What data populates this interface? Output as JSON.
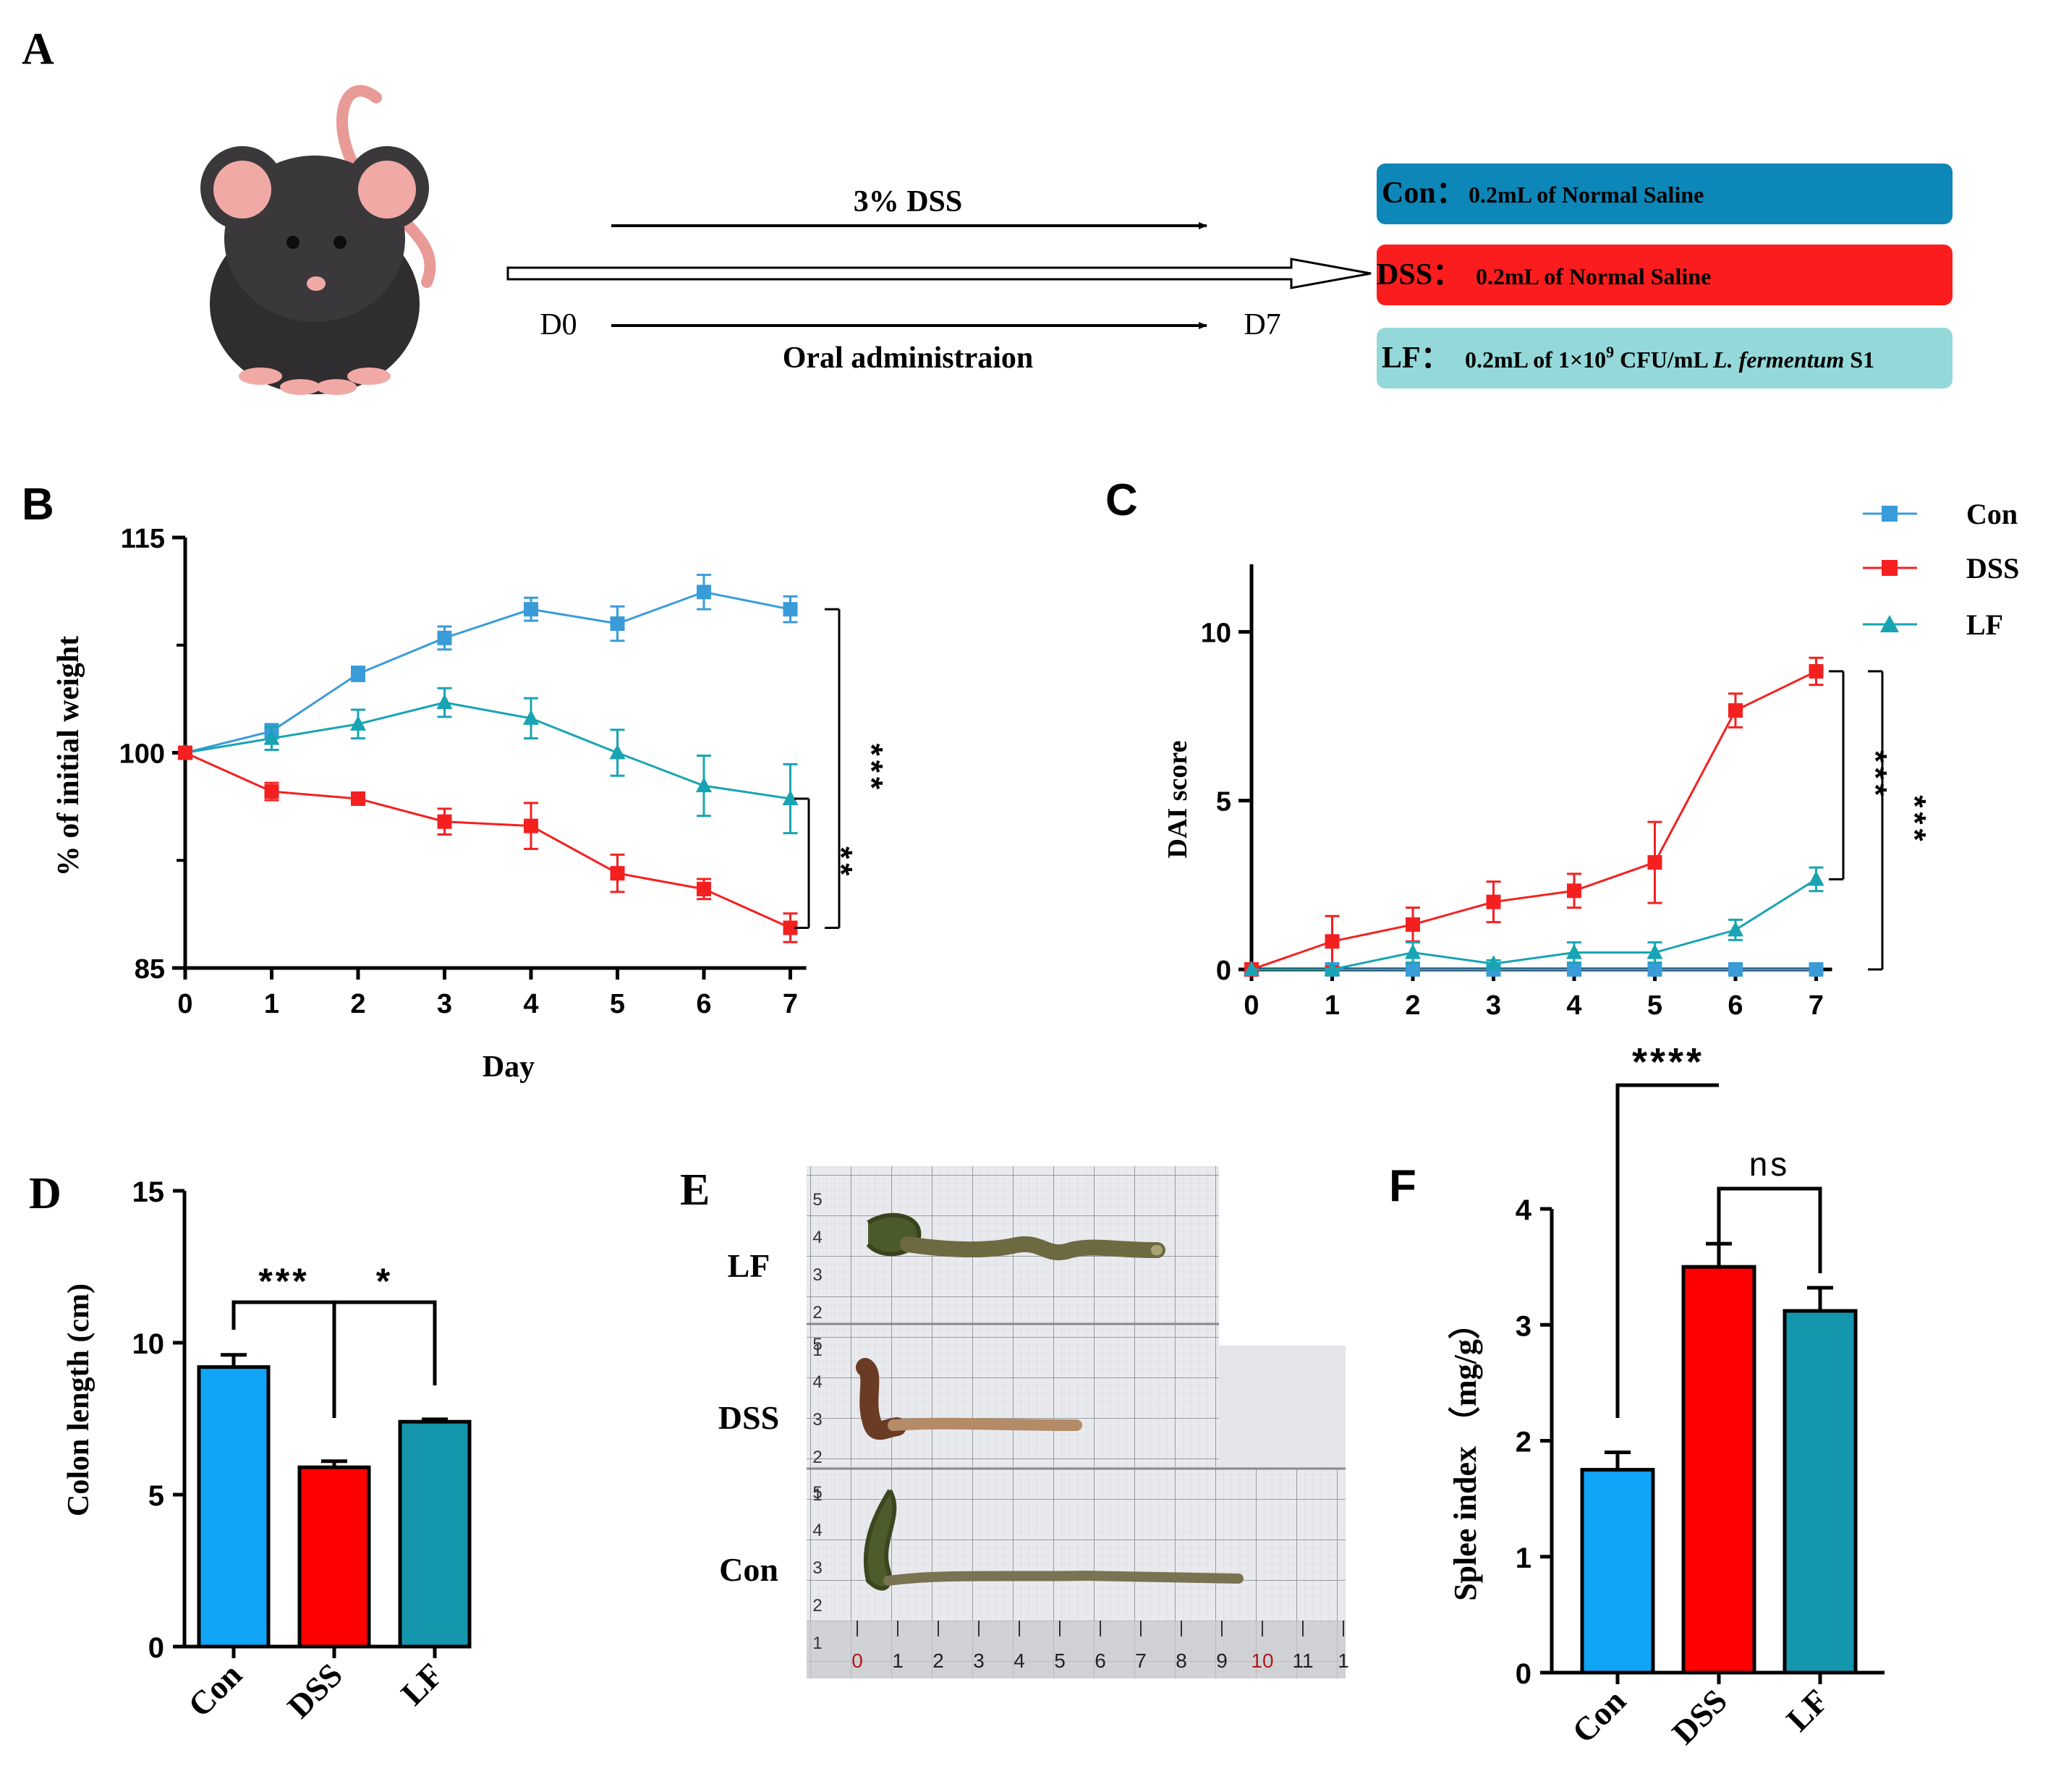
{
  "colors": {
    "con": "#3a9bd9",
    "dss": "#f42020",
    "lf": "#18a4b2",
    "con_bar": "#10a4f6",
    "dss_bar": "#ff0000",
    "lf_bar": "#1496ad",
    "con_box": "#0d86b8",
    "dss_box": "#fb1d1d",
    "lf_box": "#95d8d9"
  },
  "panel_labels": {
    "a": "A",
    "b": "B",
    "c": "C",
    "d": "D",
    "e": "E",
    "f": "F"
  },
  "panel_a": {
    "top_arrow_label": "3% DSS",
    "day_start": "D0",
    "day_end": "D7",
    "bottom_arrow_label": "Oral administraion",
    "groups": [
      {
        "key": "con",
        "name": "Con：",
        "desc": "0.2mL of Normal Saline"
      },
      {
        "key": "dss",
        "name": "DSS：",
        "desc": "0.2mL of  Normal Saline"
      },
      {
        "key": "lf",
        "name": "LF：",
        "desc_pre": "0.2mL of 1×10",
        "desc_sup": "9",
        "desc_mid": " CFU/mL ",
        "desc_italic": "L. fermentum",
        "desc_post": " S1"
      }
    ]
  },
  "legend": [
    "Con",
    "DSS",
    "LF"
  ],
  "chart_data": [
    {
      "panel": "B",
      "type": "line",
      "xlabel": "Day",
      "ylabel": "% of initial weight",
      "x": [
        0,
        1,
        2,
        3,
        4,
        5,
        6,
        7
      ],
      "ylim": [
        85,
        115
      ],
      "yticks": [
        85,
        100,
        115
      ],
      "series": [
        {
          "name": "Con",
          "marker": "square",
          "values": [
            100,
            101.5,
            105.5,
            108,
            110,
            109,
            111.2,
            110
          ],
          "errors": [
            0,
            0.5,
            0.5,
            0.8,
            0.8,
            1.2,
            1.2,
            0.9
          ]
        },
        {
          "name": "LF",
          "marker": "triangle",
          "values": [
            100,
            101,
            102,
            103.5,
            102.4,
            100,
            97.7,
            96.8
          ],
          "errors": [
            0,
            0.8,
            1,
            1,
            1.4,
            1.6,
            2.1,
            2.4
          ]
        },
        {
          "name": "DSS",
          "marker": "square",
          "values": [
            100,
            97.3,
            96.8,
            95.2,
            94.9,
            91.6,
            90.5,
            87.8
          ],
          "errors": [
            0,
            0.6,
            0.3,
            0.9,
            1.6,
            1.3,
            0.7,
            1
          ]
        }
      ],
      "significance": [
        {
          "label": "***",
          "from": 110,
          "to": 87.8
        },
        {
          "label": "**",
          "from": 96.8,
          "to": 87.8
        }
      ]
    },
    {
      "panel": "C",
      "type": "line",
      "xlabel": "",
      "ylabel": "DAI score",
      "x": [
        0,
        1,
        2,
        3,
        4,
        5,
        6,
        7
      ],
      "ylim": [
        0,
        12
      ],
      "yticks": [
        0,
        5,
        10
      ],
      "series": [
        {
          "name": "Con",
          "marker": "square",
          "values": [
            0,
            0,
            0,
            0,
            0,
            0,
            0,
            0
          ],
          "errors": [
            0,
            0,
            0,
            0,
            0,
            0,
            0,
            0
          ]
        },
        {
          "name": "DSS",
          "marker": "square",
          "values": [
            0,
            0.83,
            1.33,
            2,
            2.33,
            3.17,
            7.67,
            8.83
          ],
          "errors": [
            0,
            0.75,
            0.5,
            0.6,
            0.5,
            1.2,
            0.5,
            0.4
          ]
        },
        {
          "name": "LF",
          "marker": "triangle",
          "values": [
            0,
            0,
            0.5,
            0.17,
            0.5,
            0.5,
            1.17,
            2.67
          ],
          "errors": [
            0,
            0,
            0.3,
            0.1,
            0.3,
            0.3,
            0.3,
            0.35
          ]
        }
      ],
      "significance": [
        {
          "label": "***",
          "from": 8.83,
          "to": 2.67
        },
        {
          "label": "***",
          "from": 8.83,
          "to": 0
        }
      ]
    },
    {
      "panel": "D",
      "type": "bar",
      "ylabel": "Colon length (cm)",
      "categories": [
        "Con",
        "DSS",
        "LF"
      ],
      "values": [
        9.2,
        5.9,
        7.4
      ],
      "errors": [
        0.4,
        0.2,
        0.08
      ],
      "ylim": [
        0,
        15
      ],
      "yticks": [
        0,
        5,
        10,
        15
      ],
      "significance": [
        {
          "label": "***",
          "between": [
            "Con",
            "DSS"
          ]
        },
        {
          "label": "*",
          "between": [
            "DSS",
            "LF"
          ]
        }
      ]
    },
    {
      "panel": "F",
      "type": "bar",
      "ylabel": "Splee index （mg/g）",
      "categories": [
        "Con",
        "DSS",
        "LF"
      ],
      "values": [
        1.75,
        3.5,
        3.12
      ],
      "errors": [
        0.15,
        0.2,
        0.2
      ],
      "ylim": [
        0,
        4
      ],
      "yticks": [
        0,
        1,
        2,
        3,
        4
      ],
      "significance": [
        {
          "label": "****",
          "between": [
            "Con",
            "DSS"
          ]
        },
        {
          "label": "ns",
          "between": [
            "DSS",
            "LF"
          ]
        }
      ]
    }
  ],
  "panel_e": {
    "rows": [
      "LF",
      "DSS",
      "Con"
    ],
    "ruler_ticks": [
      "0",
      "1",
      "2",
      "3",
      "4",
      "5",
      "6",
      "7",
      "8",
      "9",
      "10",
      "11",
      "1"
    ],
    "vertical_ticks": [
      "5",
      "4",
      "3",
      "2",
      "1"
    ]
  }
}
